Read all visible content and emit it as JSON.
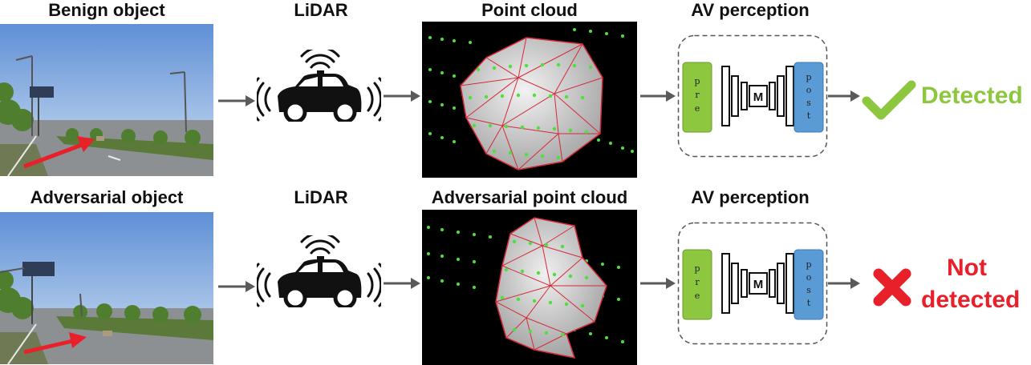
{
  "rows": [
    {
      "object_title": "Benign object",
      "lidar_title": "LiDAR",
      "cloud_title": "Point cloud",
      "perception_title": "AV perception",
      "result_lines": [
        "Detected"
      ],
      "result_icon": "check-mark-icon",
      "result_color": "#8dc63f"
    },
    {
      "object_title": "Adversarial object",
      "lidar_title": "LiDAR",
      "cloud_title": "Adversarial point cloud",
      "perception_title": "AV perception",
      "result_lines": [
        "Not",
        "detected"
      ],
      "result_icon": "cross-mark-icon",
      "result_color": "#e8202a"
    }
  ],
  "network": {
    "pre_label": "pre",
    "post_label": "post",
    "model_label": "M",
    "pre_color": "#8dc63f",
    "post_color": "#5b9bd5"
  },
  "icons": {
    "car": "autonomous-car-icon",
    "arrow": "right-arrow-icon"
  }
}
